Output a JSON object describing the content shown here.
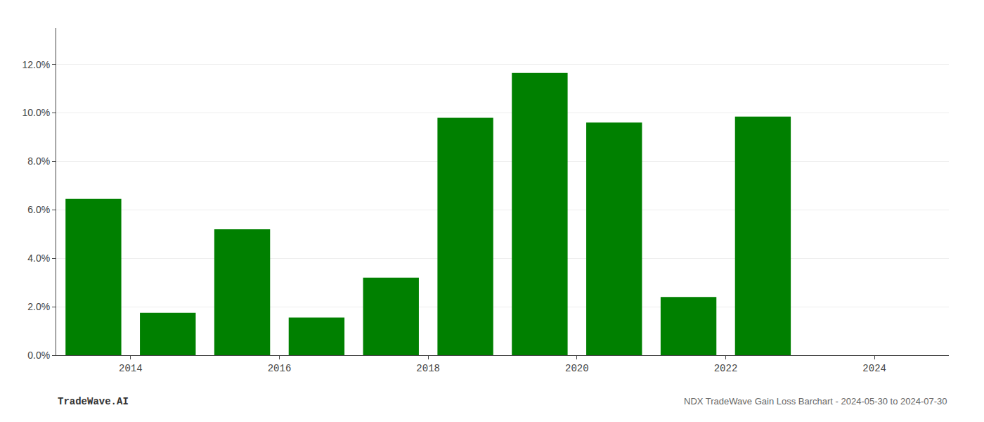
{
  "chart_data": {
    "type": "bar",
    "x": [
      2013.5,
      2014.5,
      2015.5,
      2016.5,
      2017.5,
      2018.5,
      2019.5,
      2020.5,
      2021.5,
      2022.5
    ],
    "values": [
      0.0645,
      0.0175,
      0.052,
      0.0155,
      0.032,
      0.098,
      0.1165,
      0.096,
      0.024,
      0.0985
    ],
    "color": "#008000",
    "xlim": [
      2013.0,
      2025.0
    ],
    "xticks": [
      2014,
      2016,
      2018,
      2020,
      2022,
      2024
    ],
    "ylim": [
      0,
      0.135
    ],
    "yticks": [
      {
        "value": 0.0,
        "label": "0.0%"
      },
      {
        "value": 0.02,
        "label": "2.0%"
      },
      {
        "value": 0.04,
        "label": "4.0%"
      },
      {
        "value": 0.06,
        "label": "6.0%"
      },
      {
        "value": 0.08,
        "label": "8.0%"
      },
      {
        "value": 0.1,
        "label": "10.0%"
      },
      {
        "value": 0.12,
        "label": "12.0%"
      }
    ],
    "grid": true,
    "annotations": [
      "TradeWave.AI",
      "NDX TradeWave Gain Loss Barchart - 2024-05-30 to 2024-07-30"
    ]
  }
}
